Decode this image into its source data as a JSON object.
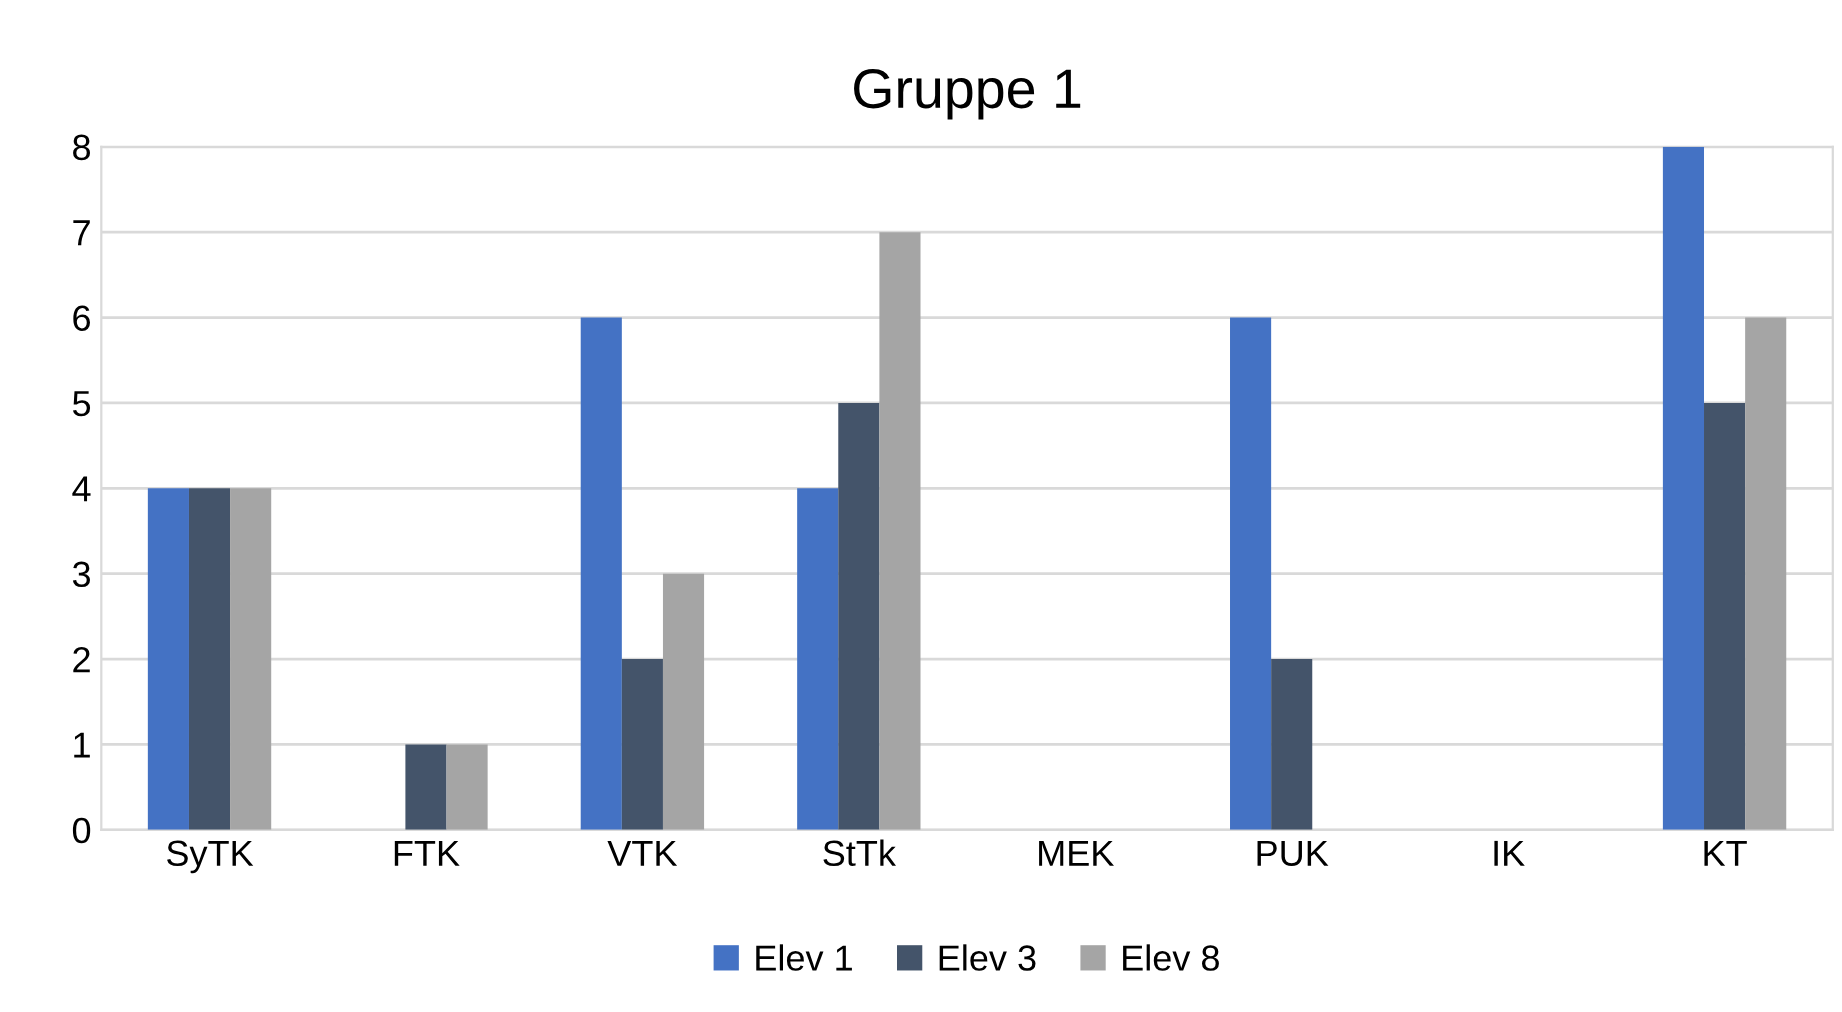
{
  "chart_data": {
    "type": "bar",
    "title": "Gruppe 1",
    "categories": [
      "SyTK",
      "FTK",
      "VTK",
      "StTk",
      "MEK",
      "PUK",
      "IK",
      "KT"
    ],
    "series": [
      {
        "name": "Elev 1",
        "color": "#4472c4",
        "values": [
          4,
          0,
          6,
          4,
          0,
          6,
          0,
          8
        ]
      },
      {
        "name": "Elev 3",
        "color": "#44546a",
        "values": [
          4,
          1,
          2,
          5,
          0,
          2,
          0,
          5
        ]
      },
      {
        "name": "Elev 8",
        "color": "#a5a5a5",
        "values": [
          4,
          1,
          3,
          7,
          0,
          0,
          0,
          6
        ]
      }
    ],
    "ylim": [
      0,
      8
    ],
    "yticks": [
      0,
      1,
      2,
      3,
      4,
      5,
      6,
      7,
      8
    ],
    "grid": "y",
    "legend": "bottom"
  }
}
